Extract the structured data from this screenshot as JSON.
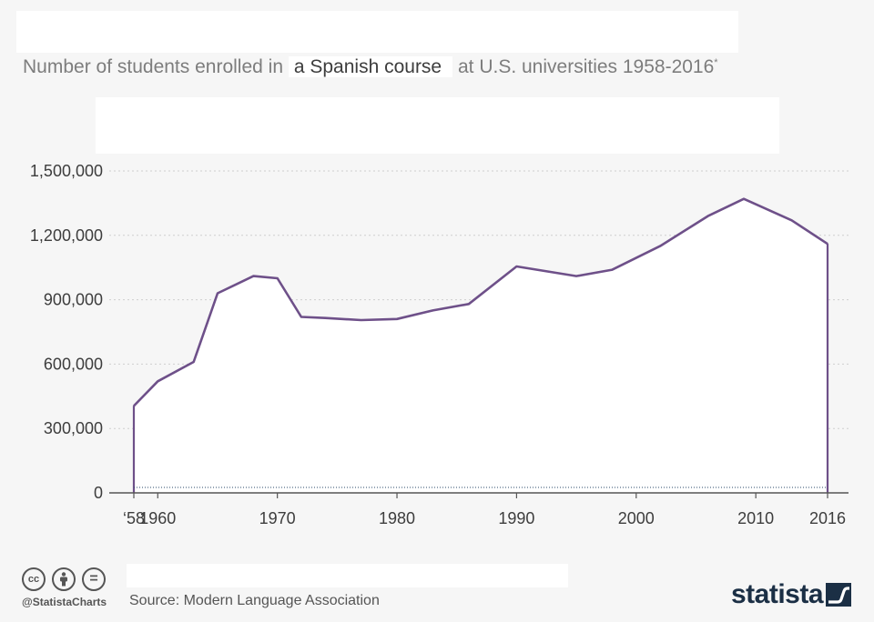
{
  "subtitle": {
    "prefix": "Number of students enrolled in",
    "highlight": "a Spanish course",
    "suffix": "at U.S. universities 1958-2016",
    "footnote_mark": "*"
  },
  "footer": {
    "source": "Source: Modern Language Association",
    "handle": "@StatistaCharts",
    "brand": "statista"
  },
  "colors": {
    "line": "#6e5089",
    "area": "#ffffff",
    "grid": "#cfcfcf",
    "axis": "#555555",
    "text": "#3d3d3d"
  },
  "chart_data": {
    "type": "area",
    "title": "Number of students enrolled in a Spanish course at U.S. universities 1958-2016*",
    "xlabel": "",
    "ylabel": "",
    "x": [
      1958,
      1960,
      1963,
      1965,
      1968,
      1970,
      1972,
      1974,
      1977,
      1980,
      1983,
      1986,
      1990,
      1995,
      1998,
      2002,
      2006,
      2009,
      2013,
      2016
    ],
    "values": [
      405000,
      520000,
      610000,
      930000,
      1010000,
      1000000,
      820000,
      815000,
      805000,
      810000,
      850000,
      880000,
      1055000,
      1010000,
      1040000,
      1150000,
      1290000,
      1370000,
      1270000,
      1160000
    ],
    "ylim": [
      0,
      1500000
    ],
    "xlim": [
      1958,
      2016
    ],
    "y_ticks": [
      "0",
      "300,000",
      "600,000",
      "900,000",
      "1,200,000",
      "1,500,000"
    ],
    "y_tick_values": [
      0,
      300000,
      600000,
      900000,
      1200000,
      1500000
    ],
    "x_ticks": [
      "‘58",
      "1960",
      "1970",
      "1980",
      "1990",
      "2000",
      "2010",
      "2016"
    ],
    "x_tick_values": [
      1958,
      1960,
      1970,
      1980,
      1990,
      2000,
      2010,
      2016
    ],
    "grid": true
  }
}
